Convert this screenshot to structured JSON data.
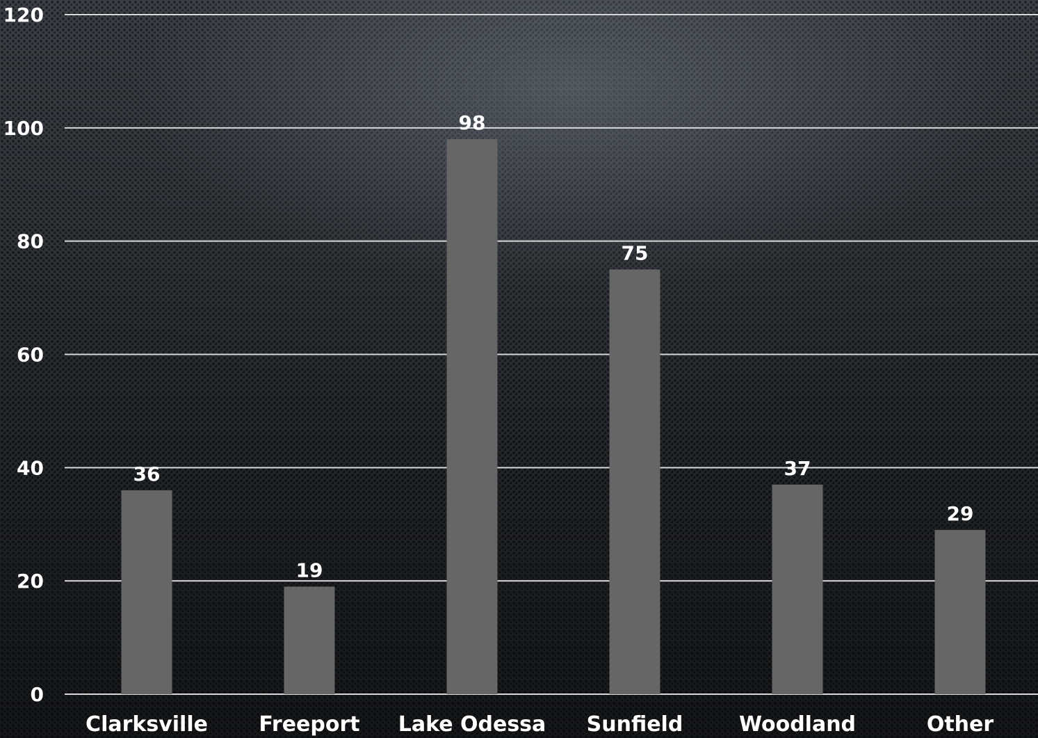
{
  "chart_data": {
    "type": "bar",
    "categories": [
      "Clarksville",
      "Freeport",
      "Lake Odessa",
      "Sunfield",
      "Woodland",
      "Other"
    ],
    "values": [
      36,
      19,
      98,
      75,
      37,
      29
    ],
    "ylim": [
      0,
      120
    ],
    "yticks": [
      0,
      20,
      40,
      60,
      80,
      100,
      120
    ],
    "grid": true,
    "legend": "none",
    "data_labels": true,
    "colors": {
      "bar": "#666666",
      "grid": "#d9d9d9",
      "text": "#ffffff"
    }
  }
}
